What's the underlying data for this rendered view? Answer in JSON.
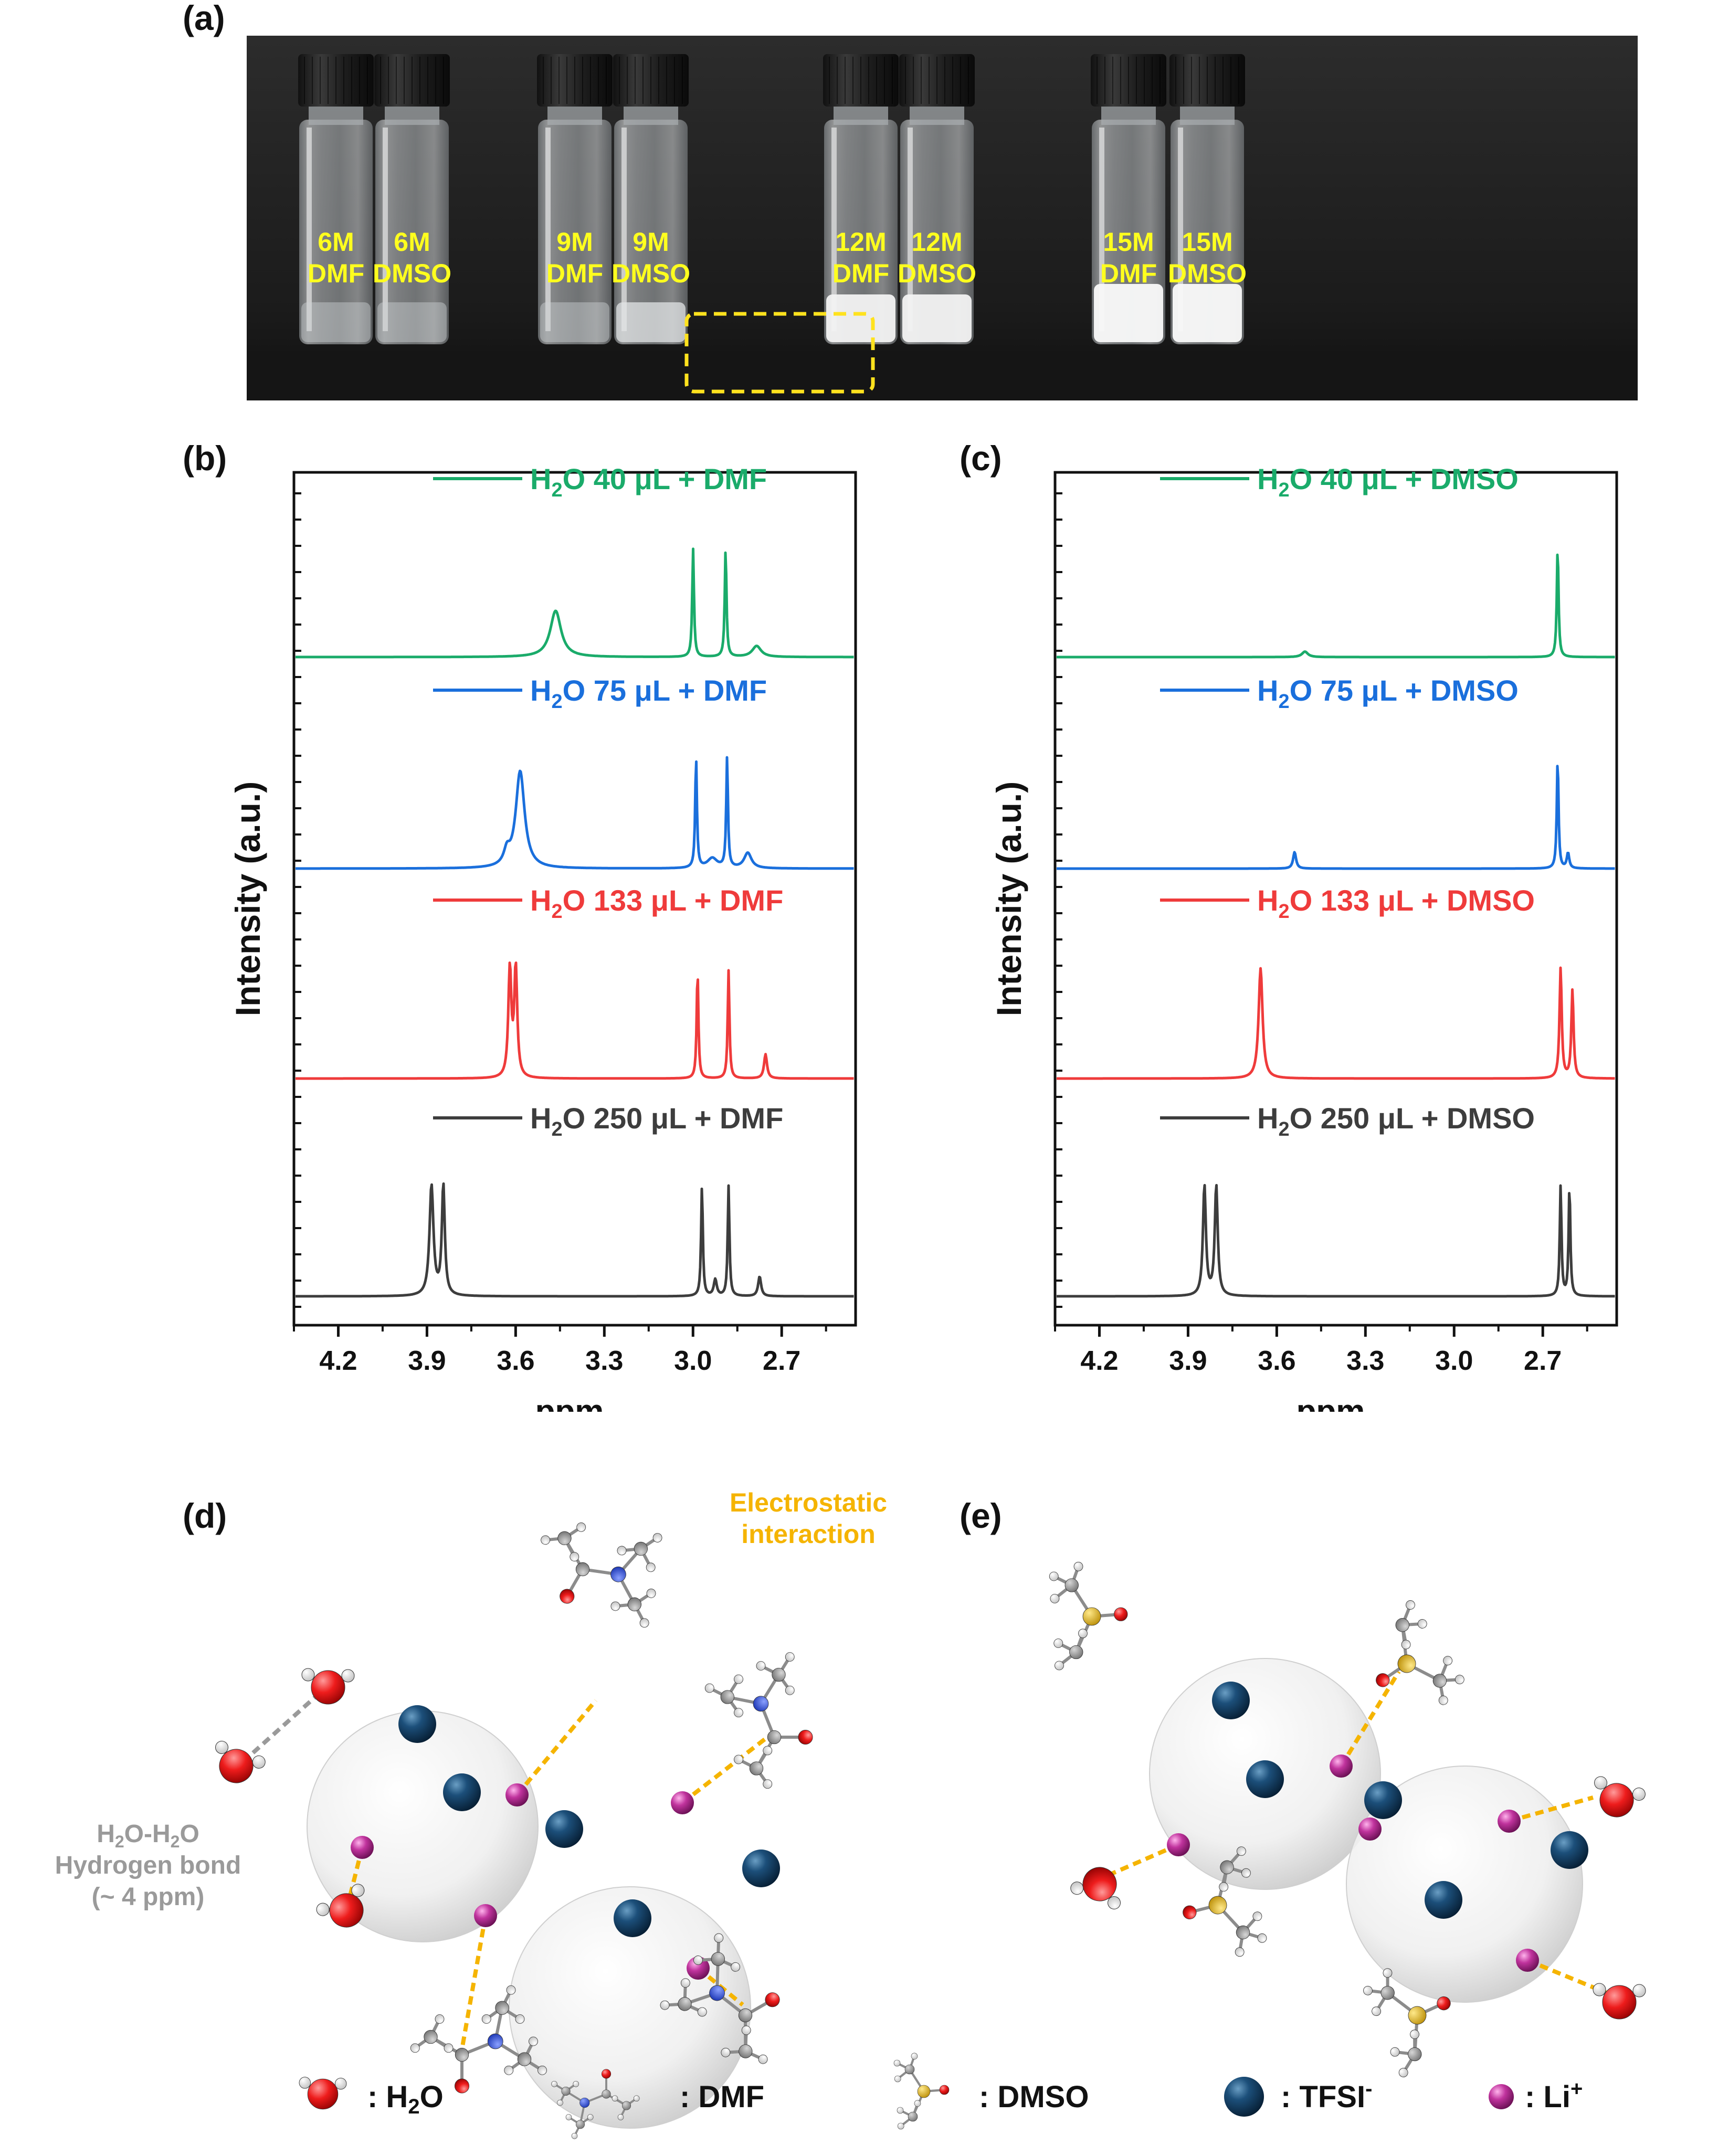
{
  "panels": {
    "a": "(a)",
    "b": "(b)",
    "c": "(c)",
    "d": "(d)",
    "e": "(e)"
  },
  "vials": [
    {
      "conc": "6M",
      "solvent": "DMF",
      "state": "clear"
    },
    {
      "conc": "6M",
      "solvent": "DMSO",
      "state": "clear"
    },
    {
      "conc": "9M",
      "solvent": "DMF",
      "state": "clear"
    },
    {
      "conc": "9M",
      "solvent": "DMSO",
      "state": "cloudy"
    },
    {
      "conc": "12M",
      "solvent": "DMF",
      "state": "partial-solid"
    },
    {
      "conc": "12M",
      "solvent": "DMSO",
      "state": "partial-solid"
    },
    {
      "conc": "15M",
      "solvent": "DMF",
      "state": "solid"
    },
    {
      "conc": "15M",
      "solvent": "DMSO",
      "state": "solid"
    }
  ],
  "colors": {
    "green": "#1aab6a",
    "blue": "#1a6fdc",
    "red": "#ef3b3b",
    "gray": "#3d3d3d",
    "label_yellow": "#ffff1e",
    "annotation_orange": "#f5b400",
    "hbond_gray": "#9a9a9a"
  },
  "chart_data": [
    {
      "id": "b",
      "type": "line",
      "xlabel": "ppm",
      "ylabel": "Intensity (a.u.)",
      "xlim": [
        4.35,
        2.45
      ],
      "xticks": [
        "4.2",
        "3.9",
        "3.6",
        "3.3",
        "3.0",
        "2.7"
      ],
      "xtick_values": [
        4.2,
        3.9,
        3.6,
        3.3,
        3.0,
        2.7
      ],
      "series": [
        {
          "legend_pre": "H",
          "legend_sub": "2",
          "legend_post": "O 40 μL + DMF",
          "color": "#1aab6a",
          "peaks": [
            [
              3.47,
              0.42,
              0.022
            ],
            [
              3.005,
              0.98,
              0.0035
            ],
            [
              2.895,
              0.98,
              0.0035
            ],
            [
              2.79,
              0.1,
              0.018
            ]
          ]
        },
        {
          "legend_pre": "H",
          "legend_sub": "2",
          "legend_post": "O 75 μL + DMF",
          "color": "#1a6fdc",
          "peaks": [
            [
              3.59,
              0.88,
              0.018
            ],
            [
              3.635,
              0.12,
              0.012
            ],
            [
              2.995,
              1.0,
              0.0035
            ],
            [
              2.89,
              1.0,
              0.0035
            ],
            [
              2.94,
              0.09,
              0.02
            ],
            [
              2.82,
              0.14,
              0.015
            ]
          ]
        },
        {
          "legend_pre": "H",
          "legend_sub": "2",
          "legend_post": "O 133 μL + DMF",
          "color": "#ef3b3b",
          "peaks": [
            [
              3.625,
              1.0,
              0.006
            ],
            [
              3.605,
              1.0,
              0.006
            ],
            [
              2.99,
              0.98,
              0.0035
            ],
            [
              2.885,
              0.98,
              0.0035
            ],
            [
              2.76,
              0.22,
              0.006
            ]
          ]
        },
        {
          "legend_pre": "H",
          "legend_sub": "2",
          "legend_post": "O 250 μL + DMF",
          "color": "#3d3d3d",
          "peaks": [
            [
              3.89,
              1.0,
              0.008
            ],
            [
              3.85,
              1.0,
              0.006
            ],
            [
              2.975,
              1.0,
              0.0035
            ],
            [
              2.885,
              1.0,
              0.0035
            ],
            [
              2.93,
              0.15,
              0.006
            ],
            [
              2.78,
              0.18,
              0.006
            ]
          ]
        }
      ]
    },
    {
      "id": "c",
      "type": "line",
      "xlabel": "ppm",
      "ylabel": "Intensity (a.u.)",
      "xlim": [
        4.35,
        2.45
      ],
      "xticks": [
        "4.2",
        "3.9",
        "3.6",
        "3.3",
        "3.0",
        "2.7"
      ],
      "xtick_values": [
        4.2,
        3.9,
        3.6,
        3.3,
        3.0,
        2.7
      ],
      "series": [
        {
          "legend_pre": "H",
          "legend_sub": "2",
          "legend_post": "O 40 μL + DMSO",
          "color": "#1aab6a",
          "peaks": [
            [
              3.51,
              0.05,
              0.012
            ],
            [
              2.655,
              1.0,
              0.0035
            ]
          ]
        },
        {
          "legend_pre": "H",
          "legend_sub": "2",
          "legend_post": "O 75 μL + DMSO",
          "color": "#1a6fdc",
          "peaks": [
            [
              3.545,
              0.15,
              0.006
            ],
            [
              2.655,
              1.0,
              0.0035
            ],
            [
              2.62,
              0.14,
              0.005
            ]
          ]
        },
        {
          "legend_pre": "H",
          "legend_sub": "2",
          "legend_post": "O 133 μL + DMSO",
          "color": "#ef3b3b",
          "peaks": [
            [
              3.66,
              1.0,
              0.008
            ],
            [
              2.645,
              1.0,
              0.0045
            ],
            [
              2.605,
              0.8,
              0.0045
            ]
          ]
        },
        {
          "legend_pre": "H",
          "legend_sub": "2",
          "legend_post": "O 250 μL + DMSO",
          "color": "#3d3d3d",
          "peaks": [
            [
              3.85,
              1.0,
              0.006
            ],
            [
              3.81,
              1.0,
              0.006
            ],
            [
              2.645,
              1.0,
              0.0035
            ],
            [
              2.615,
              1.0,
              0.0035
            ]
          ]
        }
      ]
    }
  ],
  "diagram_d": {
    "electrostatic_line1": "Electrostatic",
    "electrostatic_line2": "interaction",
    "hbond_line1_pre": "H",
    "hbond_line1_sub1": "2",
    "hbond_line1_mid": "O-H",
    "hbond_line1_sub2": "2",
    "hbond_line1_post": "O",
    "hbond_line2": "Hydrogen bond",
    "hbond_line3": "(~ 4 ppm)"
  },
  "legend": [
    {
      "icon": "water-molecule-icon",
      "pre": ": H",
      "sub": "2",
      "post": "O"
    },
    {
      "icon": "dmf-molecule-icon",
      "pre": ": DMF",
      "sub": "",
      "post": ""
    },
    {
      "icon": "dmso-molecule-icon",
      "pre": ": DMSO",
      "sub": "",
      "post": ""
    },
    {
      "icon": "tfsi-anion-icon",
      "pre": ": TFSI",
      "sup": "-"
    },
    {
      "icon": "lithium-ion-icon",
      "pre": ": Li",
      "sup": "+"
    }
  ]
}
